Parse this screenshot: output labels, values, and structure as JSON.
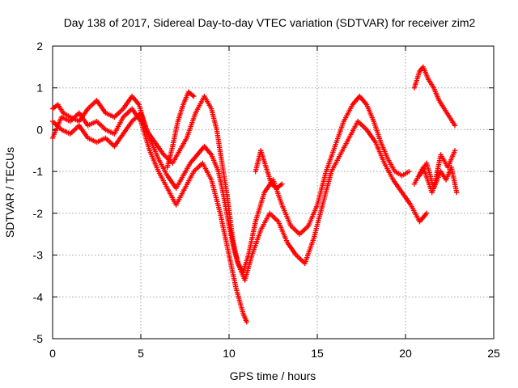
{
  "chart_data": {
    "type": "scatter",
    "title": "Day 138 of 2017, Sidereal Day-to-day VTEC variation (SDTVAR) for receiver zim2",
    "xlabel": "GPS time / hours",
    "ylabel": "SDTVAR / TECUs",
    "xlim": [
      0,
      25
    ],
    "ylim": [
      -5,
      2
    ],
    "xticks": [
      "0",
      "5",
      "10",
      "15",
      "20",
      "25"
    ],
    "yticks": [
      "2",
      "1",
      "0",
      "-1",
      "-2",
      "-3",
      "-4",
      "-5"
    ],
    "grid": true,
    "marker": "+",
    "color": "#ff0000",
    "series": [
      {
        "x": [
          0.0,
          0.3,
          0.6,
          1.0,
          1.5,
          2.0,
          2.5,
          3.0,
          3.5,
          4.0,
          4.5,
          4.9,
          5.3,
          5.8,
          6.3,
          6.8,
          7.2,
          7.6,
          8.1,
          8.6,
          9.0,
          9.3,
          9.6,
          9.9,
          10.2,
          10.5,
          10.8,
          11.1,
          11.5,
          12.0,
          12.5,
          13.0,
          13.5,
          14.0,
          14.5,
          15.0,
          15.5,
          16.0,
          16.5,
          17.0,
          17.4,
          17.8,
          18.2,
          18.6,
          19.0,
          19.4,
          19.8,
          20.2
        ],
        "y": [
          0.5,
          0.6,
          0.4,
          0.3,
          0.2,
          0.5,
          0.7,
          0.4,
          0.3,
          0.5,
          0.8,
          0.6,
          0.0,
          -0.3,
          -0.6,
          -0.8,
          -0.5,
          -0.2,
          0.4,
          0.8,
          0.5,
          0.0,
          -0.8,
          -1.6,
          -2.6,
          -3.2,
          -3.4,
          -3.0,
          -2.2,
          -1.5,
          -1.2,
          -1.8,
          -2.3,
          -2.5,
          -2.3,
          -1.8,
          -1.0,
          -0.4,
          0.2,
          0.6,
          0.8,
          0.6,
          0.2,
          -0.3,
          -0.7,
          -1.0,
          -1.1,
          -1.0
        ]
      },
      {
        "x": [
          0.0,
          0.5,
          1.0,
          1.5,
          2.0,
          2.5,
          3.0,
          3.5,
          4.0,
          4.5,
          5.0,
          5.5,
          6.0,
          6.5,
          7.0,
          7.4,
          7.8,
          8.2,
          8.6,
          9.0,
          9.4,
          9.7,
          10.0,
          10.3,
          10.6,
          10.9,
          11.3,
          11.8,
          12.3,
          12.8,
          13.3,
          13.8,
          14.3,
          14.8,
          15.3,
          15.8,
          16.3,
          16.8,
          17.3,
          17.8,
          18.3,
          18.8,
          19.3,
          19.8,
          20.3,
          20.8,
          21.2
        ],
        "y": [
          0.2,
          0.0,
          -0.1,
          0.1,
          -0.2,
          -0.3,
          -0.2,
          -0.4,
          -0.1,
          0.2,
          0.4,
          -0.2,
          -0.7,
          -1.1,
          -1.4,
          -1.1,
          -0.8,
          -0.6,
          -0.4,
          -0.6,
          -1.0,
          -1.6,
          -2.3,
          -2.9,
          -3.3,
          -3.6,
          -3.0,
          -2.4,
          -2.0,
          -2.2,
          -2.7,
          -3.0,
          -3.2,
          -2.6,
          -1.8,
          -1.0,
          -0.6,
          -0.2,
          0.2,
          0.0,
          -0.3,
          -0.8,
          -1.2,
          -1.5,
          -1.8,
          -2.2,
          -2.0
        ]
      },
      {
        "x": [
          0.0,
          0.5,
          1.0,
          1.5,
          2.0,
          2.5,
          3.0,
          3.5,
          4.0,
          4.5,
          5.0,
          5.5,
          6.0,
          6.5,
          7.0,
          7.5,
          8.0,
          8.5,
          9.0,
          9.5,
          10.0,
          10.4,
          10.8,
          11.0
        ],
        "y": [
          -0.2,
          0.3,
          0.2,
          0.4,
          0.1,
          0.2,
          0.0,
          -0.1,
          0.3,
          0.5,
          0.2,
          -0.5,
          -1.0,
          -1.4,
          -1.8,
          -1.4,
          -1.0,
          -0.8,
          -1.2,
          -2.0,
          -3.0,
          -3.8,
          -4.4,
          -4.6
        ]
      },
      {
        "x": [
          6.5,
          6.8,
          7.1,
          7.4,
          7.7,
          8.0
        ],
        "y": [
          -0.9,
          -0.4,
          0.2,
          0.6,
          0.9,
          0.8
        ]
      },
      {
        "x": [
          11.5,
          11.8,
          12.1,
          12.4,
          12.7,
          13.0
        ],
        "y": [
          -1.0,
          -0.5,
          -0.9,
          -1.3,
          -1.4,
          -1.3
        ]
      },
      {
        "x": [
          20.5,
          20.8,
          21.0,
          21.3,
          21.6,
          21.9,
          22.2,
          22.5,
          22.8
        ],
        "y": [
          1.0,
          1.4,
          1.5,
          1.2,
          1.0,
          0.7,
          0.5,
          0.3,
          0.1
        ]
      },
      {
        "x": [
          20.5,
          21.0,
          21.5,
          22.0,
          22.3,
          22.6,
          22.9
        ],
        "y": [
          -1.3,
          -0.9,
          -1.5,
          -1.0,
          -1.2,
          -0.9,
          -1.5
        ]
      },
      {
        "x": [
          20.8,
          21.2,
          21.6,
          22.0,
          22.4,
          22.8
        ],
        "y": [
          -1.1,
          -0.8,
          -1.4,
          -0.6,
          -0.9,
          -0.5
        ]
      }
    ]
  }
}
